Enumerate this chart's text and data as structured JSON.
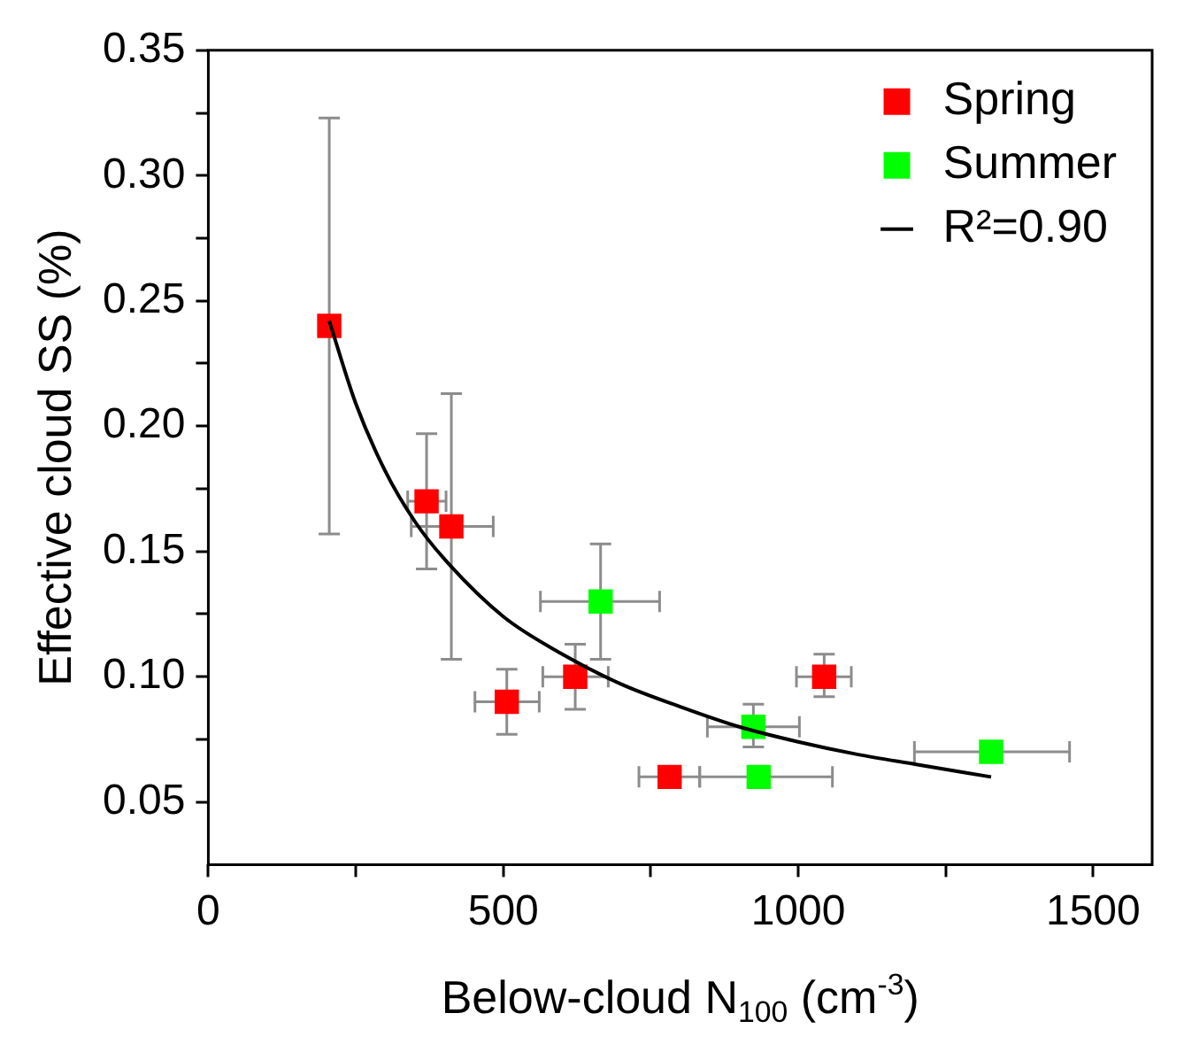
{
  "chart_data": {
    "type": "scatter",
    "xlabel": "Below-cloud N$_{100}$ (cm$^{-3}$)",
    "ylabel": "Effective cloud SS (%)",
    "xlim": [
      0,
      1600
    ],
    "ylim": [
      0.025,
      0.35
    ],
    "xticks": [
      0,
      {
        "value": 250,
        "label": null
      },
      500,
      {
        "value": 750,
        "label": null
      },
      1000,
      {
        "value": 1250,
        "label": null
      },
      1500
    ],
    "yticks": [
      {
        "value": 0.05,
        "label": "0.05"
      },
      {
        "value": 0.075,
        "label": null
      },
      {
        "value": 0.1,
        "label": "0.10"
      },
      {
        "value": 0.125,
        "label": null
      },
      {
        "value": 0.15,
        "label": "0.15"
      },
      {
        "value": 0.175,
        "label": null
      },
      {
        "value": 0.2,
        "label": "0.20"
      },
      {
        "value": 0.225,
        "label": null
      },
      {
        "value": 0.25,
        "label": "0.25"
      },
      {
        "value": 0.275,
        "label": null
      },
      {
        "value": 0.3,
        "label": "0.30"
      },
      {
        "value": 0.325,
        "label": null
      },
      {
        "value": 0.35,
        "label": "0.35"
      }
    ],
    "grid": false,
    "legend": "top right",
    "marker": "square",
    "series": [
      {
        "name": "Spring",
        "color": "#ff0000",
        "x": [
          205,
          370,
          412,
          506,
          622,
          782,
          1044
        ],
        "values": [
          0.24,
          0.17,
          0.16,
          0.09,
          0.1,
          0.06,
          0.1
        ],
        "errors": [
          [
            0.157,
            0.323
          ],
          [
            0.143,
            0.197
          ],
          [
            0.107,
            0.213
          ],
          [
            0.077,
            0.103
          ],
          [
            0.087,
            0.113
          ],
          null,
          [
            0.092,
            0.109
          ]
        ],
        "xerrors": [
          null,
          [
            338,
            403
          ],
          [
            344,
            483
          ],
          [
            452,
            561
          ],
          [
            567,
            678
          ],
          [
            730,
            833
          ],
          [
            997,
            1090
          ]
        ]
      },
      {
        "name": "Summer",
        "color": "#00ff00",
        "x": [
          665,
          924,
          933,
          1327
        ],
        "values": [
          0.13,
          0.08,
          0.06,
          0.07
        ],
        "errors": [
          [
            0.107,
            0.153
          ],
          [
            0.072,
            0.089
          ],
          null,
          null
        ],
        "xerrors": [
          [
            563,
            765
          ],
          [
            846,
            1002
          ],
          [
            833,
            1058
          ],
          [
            1197,
            1460
          ]
        ]
      },
      {
        "name": "R²=0.90",
        "type": "line",
        "color": "#000000",
        "marker": "none",
        "x": [
          205,
          250,
          300,
          350,
          400,
          500,
          600,
          700,
          800,
          900,
          1000,
          1100,
          1200,
          1327
        ],
        "values": [
          0.242,
          0.209,
          0.182,
          0.162,
          0.147,
          0.124,
          0.109,
          0.097,
          0.088,
          0.08,
          0.074,
          0.069,
          0.065,
          0.06
        ]
      }
    ]
  }
}
